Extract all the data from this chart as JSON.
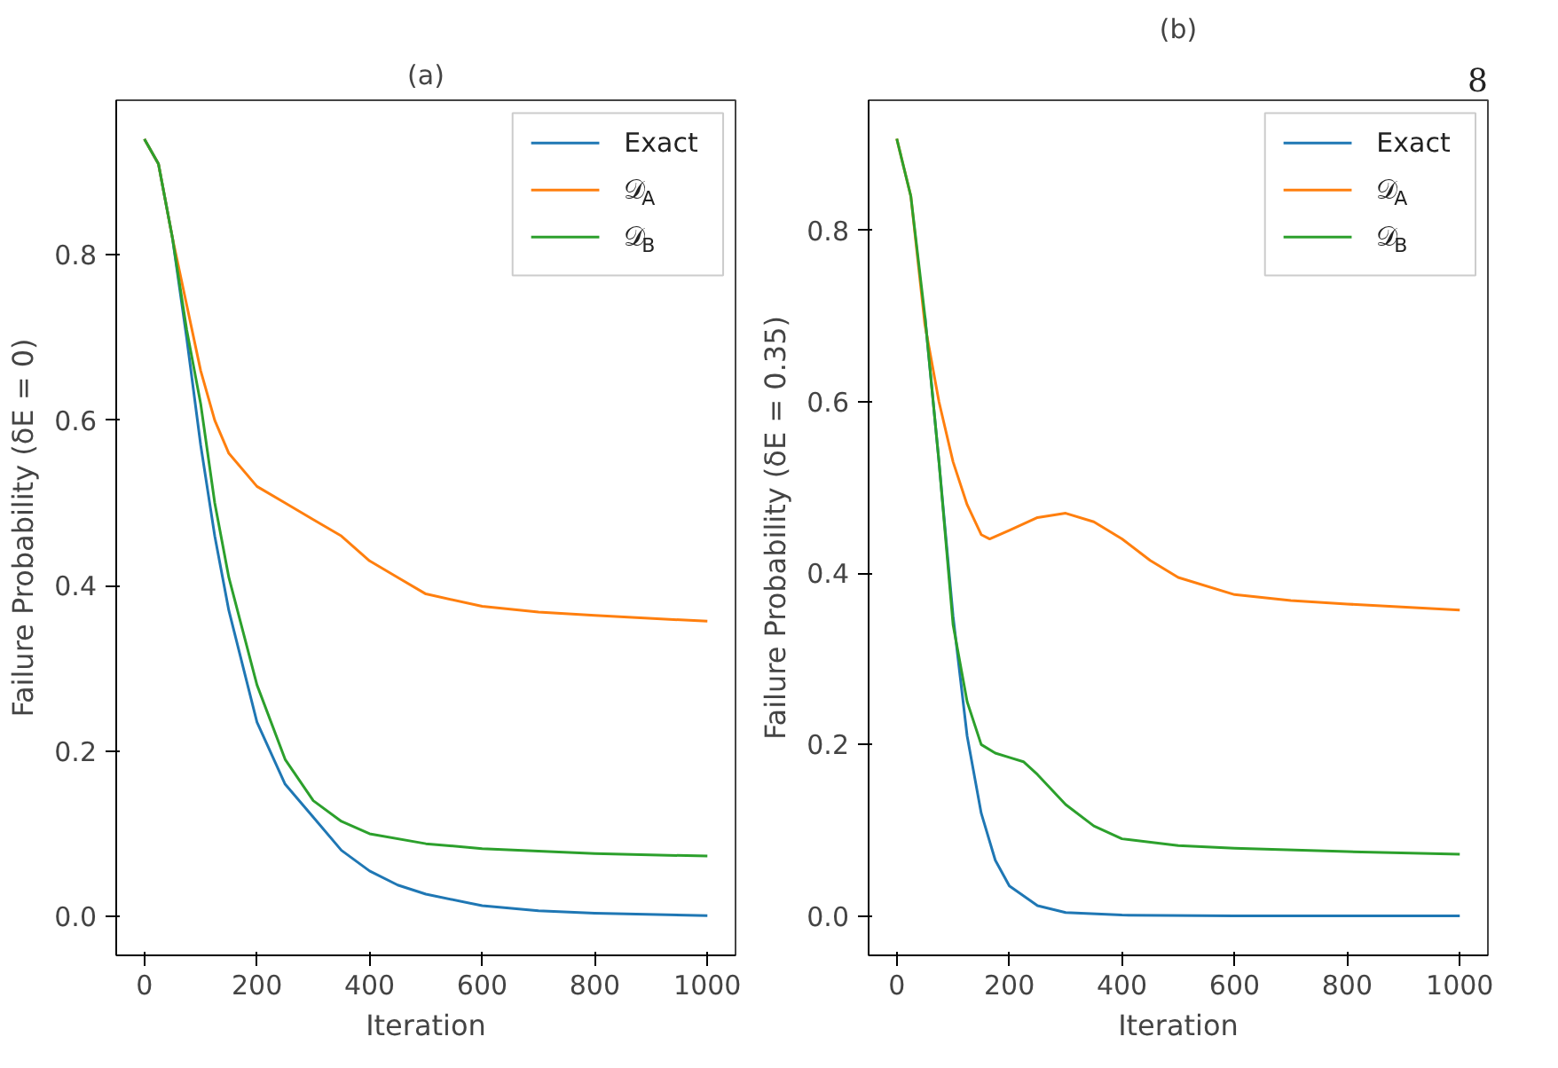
{
  "chart_data": [
    {
      "type": "line",
      "title": "(a)",
      "xlabel": "Iteration",
      "ylabel": "Failure Probability (δE = 0)",
      "xlim": [
        -50,
        1050
      ],
      "ylim": [
        -0.047,
        0.987
      ],
      "xticks": [
        0,
        200,
        400,
        600,
        800,
        1000
      ],
      "yticks": [
        {
          "value": 0,
          "label": "0.0"
        },
        0.2,
        0.4,
        0.6,
        0.8
      ],
      "grid": false,
      "legend": "top right",
      "line_style": "solid",
      "series": [
        {
          "name": "Exact",
          "color": "#1f77b4",
          "x": [
            0,
            25,
            50,
            75,
            100,
            125,
            150,
            200,
            250,
            300,
            350,
            400,
            450,
            500,
            600,
            700,
            800,
            1000
          ],
          "values": [
            0.94,
            0.91,
            0.82,
            0.7,
            0.57,
            0.46,
            0.37,
            0.235,
            0.16,
            0.12,
            0.08,
            0.055,
            0.038,
            0.027,
            0.013,
            0.007,
            0.004,
            0.001
          ]
        },
        {
          "name": "𝒟$_{A}$",
          "color": "#ff7f0e",
          "x": [
            0,
            25,
            50,
            75,
            100,
            125,
            150,
            200,
            250,
            300,
            350,
            400,
            450,
            500,
            600,
            700,
            800,
            1000
          ],
          "values": [
            0.94,
            0.91,
            0.82,
            0.74,
            0.66,
            0.6,
            0.56,
            0.52,
            0.5,
            0.48,
            0.46,
            0.43,
            0.41,
            0.39,
            0.375,
            0.368,
            0.364,
            0.357
          ]
        },
        {
          "name": "𝒟$_{B}$",
          "color": "#2ca02c",
          "x": [
            0,
            25,
            50,
            75,
            100,
            125,
            150,
            200,
            250,
            300,
            350,
            400,
            500,
            600,
            800,
            1000
          ],
          "values": [
            0.94,
            0.91,
            0.82,
            0.71,
            0.62,
            0.5,
            0.41,
            0.28,
            0.19,
            0.14,
            0.115,
            0.1,
            0.088,
            0.082,
            0.076,
            0.073
          ]
        }
      ]
    },
    {
      "type": "line",
      "title": "(b)",
      "xlabel": "Iteration",
      "ylabel": "Failure Probability (δE = 0.35)",
      "xlim": [
        -50,
        1050
      ],
      "ylim": [
        -0.046,
        0.952
      ],
      "xticks": [
        0,
        200,
        400,
        600,
        800,
        1000
      ],
      "yticks": [
        {
          "value": 0,
          "label": "0.0"
        },
        0.2,
        0.4,
        0.6,
        0.8
      ],
      "grid": false,
      "legend": "top right",
      "line_style": "solid",
      "annotations": [
        "8"
      ],
      "series": [
        {
          "name": "Exact",
          "color": "#1f77b4",
          "x": [
            50,
            75,
            100,
            125,
            150,
            175,
            200,
            250,
            300,
            400,
            600,
            1000
          ],
          "values": [
            0.7,
            0.53,
            0.35,
            0.21,
            0.12,
            0.065,
            0.035,
            0.012,
            0.004,
            0.001,
            0,
            0
          ]
        },
        {
          "name": "𝒟$_{A}$",
          "color": "#ff7f0e",
          "x": [
            0,
            25,
            50,
            75,
            100,
            125,
            150,
            165,
            200,
            250,
            300,
            350,
            400,
            450,
            500,
            600,
            700,
            800,
            1000
          ],
          "values": [
            0.907,
            0.84,
            0.69,
            0.6,
            0.53,
            0.48,
            0.445,
            0.44,
            0.45,
            0.465,
            0.47,
            0.46,
            0.44,
            0.415,
            0.395,
            0.375,
            0.368,
            0.364,
            0.357
          ]
        },
        {
          "name": "𝒟$_{B}$",
          "color": "#2ca02c",
          "x": [
            0,
            25,
            50,
            75,
            100,
            125,
            150,
            175,
            200,
            225,
            250,
            300,
            350,
            400,
            500,
            600,
            800,
            1000
          ],
          "values": [
            0.907,
            0.84,
            0.7,
            0.53,
            0.34,
            0.25,
            0.2,
            0.19,
            0.185,
            0.18,
            0.165,
            0.13,
            0.105,
            0.09,
            0.082,
            0.079,
            0.075,
            0.072
          ]
        }
      ]
    }
  ]
}
